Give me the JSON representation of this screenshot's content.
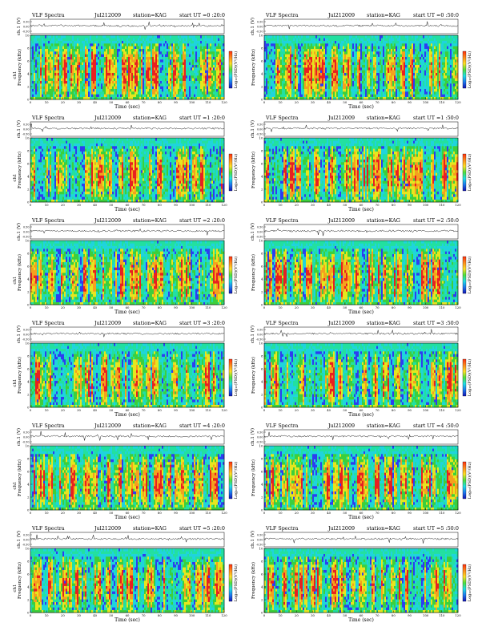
{
  "page": {
    "columns": 2,
    "rows": 6
  },
  "colors": {
    "spectro_levels": [
      "#2d3df0",
      "#1fd4dc",
      "#22e0a0",
      "#3ccf3c",
      "#e6e61e",
      "#f5a01e",
      "#e82020"
    ],
    "colorbar_stops": [
      "#ff3010",
      "#ff8c1e",
      "#ffe028",
      "#50e03c",
      "#20e0e6",
      "#1e78f0",
      "#1414b4"
    ],
    "trace": "#000000",
    "frame": "#000000"
  },
  "labels": {
    "ch_axis": "ch.1 (V)",
    "freq_axis": "Frequency (kHz)",
    "left_freq_prefix": "ch1",
    "colorbar": "Log₁₀(PSD)(V²/Hz)",
    "time_axis": "Time (sec)",
    "ch_ticks": [
      "0.50",
      "0.00",
      "-0.50"
    ],
    "freq_ticks": [
      "0",
      "2",
      "4",
      "6",
      "8",
      "10"
    ],
    "time_ticks": [
      "0",
      "10",
      "20",
      "30",
      "40",
      "50",
      "60",
      "70",
      "80",
      "90",
      "100",
      "110",
      "120"
    ]
  },
  "chart_data": [
    {
      "type": "heatmap",
      "title": "VLF Spectra",
      "date": "Jul212009",
      "station": "station=KAG",
      "start": "start UT =0 :20:0",
      "xlim": [
        0,
        120
      ],
      "ylim": [
        0,
        10
      ],
      "ch_ylim": [
        -0.5,
        0.5
      ],
      "seed": 11
    },
    {
      "type": "heatmap",
      "title": "VLF Spectra",
      "date": "Jul212009",
      "station": "station=KAG",
      "start": "start UT =0 :50:0",
      "xlim": [
        0,
        120
      ],
      "ylim": [
        0,
        10
      ],
      "ch_ylim": [
        -0.5,
        0.5
      ],
      "seed": 23
    },
    {
      "type": "heatmap",
      "title": "VLF Spectra",
      "date": "Jul212009",
      "station": "station=KAG",
      "start": "start UT =1 :20:0",
      "xlim": [
        0,
        120
      ],
      "ylim": [
        0,
        10
      ],
      "ch_ylim": [
        -0.5,
        0.5
      ],
      "seed": 37
    },
    {
      "type": "heatmap",
      "title": "VLF Spectra",
      "date": "Jul212009",
      "station": "station=KAG",
      "start": "start UT =1 :50:0",
      "xlim": [
        0,
        120
      ],
      "ylim": [
        0,
        10
      ],
      "ch_ylim": [
        -0.5,
        0.5
      ],
      "seed": 41
    },
    {
      "type": "heatmap",
      "title": "VLF Spectra",
      "date": "Jul212009",
      "station": "station=KAG",
      "start": "start UT =2 :20:0",
      "xlim": [
        0,
        120
      ],
      "ylim": [
        0,
        10
      ],
      "ch_ylim": [
        -0.5,
        0.5
      ],
      "seed": 53
    },
    {
      "type": "heatmap",
      "title": "VLF Spectra",
      "date": "Jul212009",
      "station": "station=KAG",
      "start": "start UT =2 :50:0",
      "xlim": [
        0,
        120
      ],
      "ylim": [
        0,
        10
      ],
      "ch_ylim": [
        -0.5,
        0.5
      ],
      "seed": 67
    },
    {
      "type": "heatmap",
      "title": "VLF Spectra",
      "date": "Jul212009",
      "station": "station=KAG",
      "start": "start UT =3 :20:0",
      "xlim": [
        0,
        120
      ],
      "ylim": [
        0,
        10
      ],
      "ch_ylim": [
        -0.5,
        0.5
      ],
      "seed": 71
    },
    {
      "type": "heatmap",
      "title": "VLF Spectra",
      "date": "Jul212009",
      "station": "station=KAG",
      "start": "start UT =3 :50:0",
      "xlim": [
        0,
        120
      ],
      "ylim": [
        0,
        10
      ],
      "ch_ylim": [
        -0.5,
        0.5
      ],
      "seed": 83
    },
    {
      "type": "heatmap",
      "title": "VLF Spectra",
      "date": "Jul212009",
      "station": "station=KAG",
      "start": "start UT =4 :20:0",
      "xlim": [
        0,
        120
      ],
      "ylim": [
        0,
        10
      ],
      "ch_ylim": [
        -0.5,
        0.5
      ],
      "seed": 97
    },
    {
      "type": "heatmap",
      "title": "VLF Spectra",
      "date": "Jul212009",
      "station": "station=KAG",
      "start": "start UT =4 :50:0",
      "xlim": [
        0,
        120
      ],
      "ylim": [
        0,
        10
      ],
      "ch_ylim": [
        -0.5,
        0.5
      ],
      "seed": 101
    },
    {
      "type": "heatmap",
      "title": "VLF Spectra",
      "date": "Jul212009",
      "station": "station=KAG",
      "start": "start UT =5 :20:0",
      "xlim": [
        0,
        120
      ],
      "ylim": [
        0,
        10
      ],
      "ch_ylim": [
        -0.5,
        0.5
      ],
      "seed": 113
    },
    {
      "type": "heatmap",
      "title": "VLF Spectra",
      "date": "Jul212009",
      "station": "station=KAG",
      "start": "start UT =5 :50:0",
      "xlim": [
        0,
        120
      ],
      "ylim": [
        0,
        10
      ],
      "ch_ylim": [
        -0.5,
        0.5
      ],
      "seed": 127
    }
  ]
}
